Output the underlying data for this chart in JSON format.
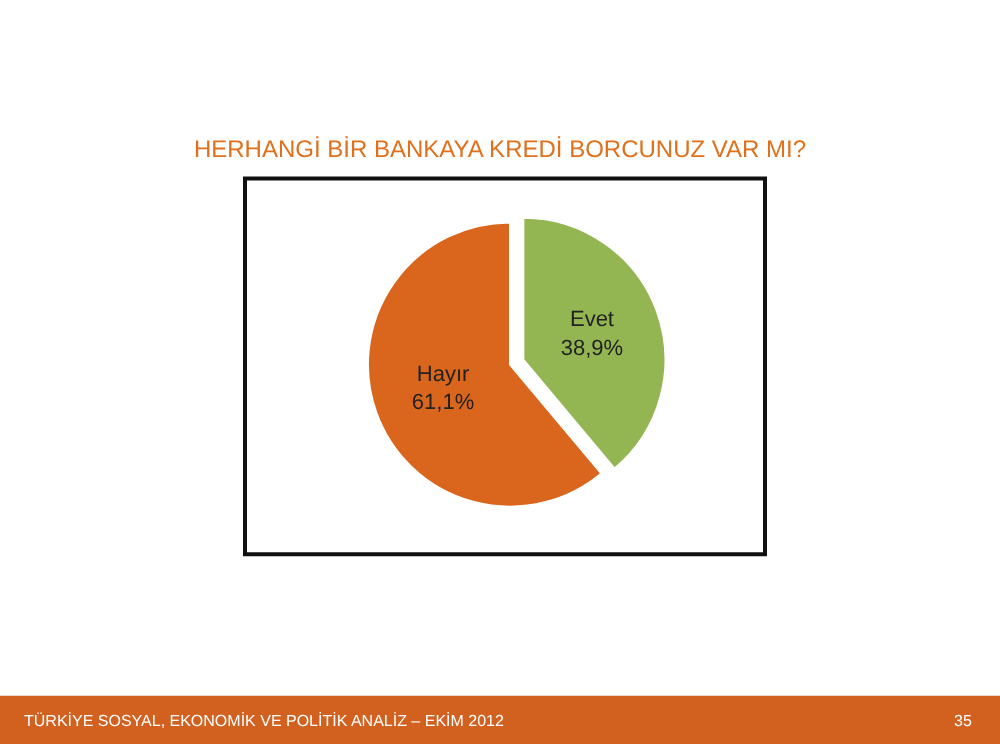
{
  "chart_data": {
    "type": "pie",
    "title": "HERHANGİ BİR BANKAYA KREDİ BORCUNUZ VAR MI?",
    "categories": [
      "Evet",
      "Hayır"
    ],
    "values": [
      38.9,
      61.1
    ],
    "value_labels": [
      "38,9%",
      "61,1%"
    ],
    "colors": [
      "#93b552",
      "#d9661c"
    ],
    "legend": false,
    "annotations": [
      "TÜRKİYE SOSYAL, EKONOMİK VE POLİTİK ANALİZ – EKİM 2012",
      "35"
    ]
  }
}
